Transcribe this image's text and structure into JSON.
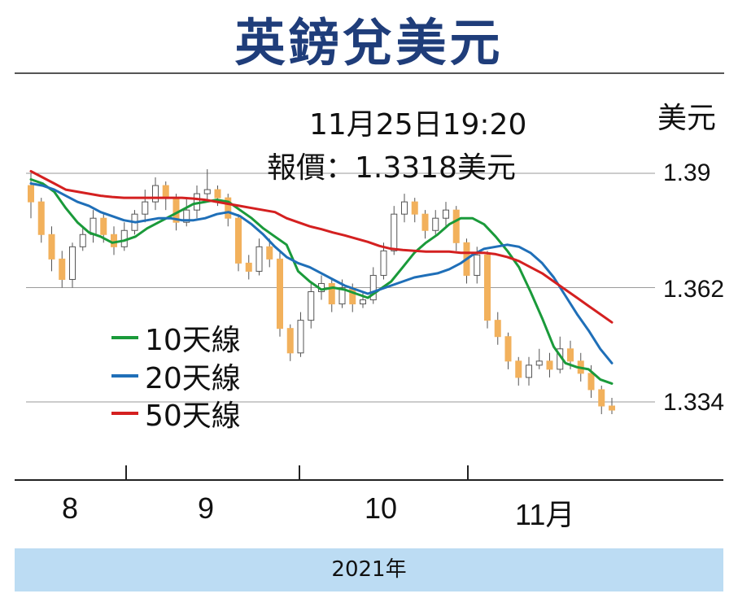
{
  "title": "英鎊兌美元",
  "unit": "美元",
  "annotation": {
    "time": "11月25日19:20",
    "price": "報價：1.3318美元"
  },
  "footer": "2021年",
  "colors": {
    "candle": "#f2b15c",
    "ma10": "#1a9a3a",
    "ma20": "#1f6fb8",
    "ma50": "#d42020",
    "title": "#1f3d7a"
  },
  "chart_data": {
    "type": "line",
    "title": "英鎊兌美元",
    "ylabel": "美元",
    "ylim": [
      1.3265,
      1.395
    ],
    "yticks": [
      "1.39",
      "1.362",
      "1.334"
    ],
    "xticks": [
      "8",
      "9",
      "10",
      "11月"
    ],
    "series": [
      {
        "name": "10天線",
        "values": [
          1.3885,
          1.3875,
          1.3855,
          1.3815,
          1.378,
          1.3755,
          1.3745,
          1.373,
          1.3735,
          1.3745,
          1.3765,
          1.378,
          1.3795,
          1.381,
          1.3825,
          1.383,
          1.3835,
          1.383,
          1.381,
          1.379,
          1.3765,
          1.3745,
          1.3725,
          1.366,
          1.3635,
          1.3615,
          1.362,
          1.3615,
          1.3605,
          1.3595,
          1.3615,
          1.3635,
          1.367,
          1.3705,
          1.373,
          1.375,
          1.3775,
          1.379,
          1.379,
          1.3775,
          1.3745,
          1.371,
          1.367,
          1.361,
          1.3545,
          1.3475,
          1.3435,
          1.3425,
          1.342,
          1.3395,
          1.3385
        ]
      },
      {
        "name": "20天線",
        "values": [
          1.3875,
          1.387,
          1.386,
          1.3845,
          1.383,
          1.382,
          1.3805,
          1.3795,
          1.3785,
          1.378,
          1.3785,
          1.379,
          1.379,
          1.3785,
          1.3785,
          1.379,
          1.38,
          1.3805,
          1.3795,
          1.3775,
          1.375,
          1.372,
          1.3695,
          1.368,
          1.367,
          1.3655,
          1.364,
          1.3625,
          1.3615,
          1.3605,
          1.3615,
          1.3625,
          1.3635,
          1.3645,
          1.365,
          1.3655,
          1.3665,
          1.368,
          1.37,
          1.3715,
          1.372,
          1.3725,
          1.372,
          1.3705,
          1.368,
          1.3645,
          1.36,
          1.3555,
          1.3515,
          1.347,
          1.3435
        ]
      },
      {
        "name": "50天線",
        "values": [
          1.3905,
          1.389,
          1.3875,
          1.386,
          1.3855,
          1.385,
          1.3845,
          1.3842,
          1.384,
          1.384,
          1.384,
          1.384,
          1.384,
          1.384,
          1.3838,
          1.3835,
          1.383,
          1.3825,
          1.382,
          1.3815,
          1.381,
          1.3805,
          1.379,
          1.378,
          1.377,
          1.3763,
          1.3755,
          1.3748,
          1.374,
          1.3732,
          1.3722,
          1.3715,
          1.3712,
          1.371,
          1.3708,
          1.3708,
          1.3708,
          1.3705,
          1.3705,
          1.3705,
          1.3702,
          1.3695,
          1.3685,
          1.367,
          1.3655,
          1.3635,
          1.3615,
          1.3595,
          1.3575,
          1.3555,
          1.3535
        ]
      }
    ],
    "candles": [
      [
        1.387,
        1.383,
        1.39,
        1.379
      ],
      [
        1.383,
        1.375,
        1.384,
        1.373
      ],
      [
        1.375,
        1.369,
        1.377,
        1.366
      ],
      [
        1.369,
        1.364,
        1.371,
        1.362
      ],
      [
        1.364,
        1.372,
        1.373,
        1.362
      ],
      [
        1.372,
        1.375,
        1.377,
        1.371
      ],
      [
        1.375,
        1.379,
        1.381,
        1.373
      ],
      [
        1.379,
        1.375,
        1.38,
        1.373
      ],
      [
        1.375,
        1.372,
        1.377,
        1.37
      ],
      [
        1.372,
        1.376,
        1.378,
        1.371
      ],
      [
        1.376,
        1.38,
        1.381,
        1.375
      ],
      [
        1.38,
        1.383,
        1.386,
        1.378
      ],
      [
        1.383,
        1.387,
        1.389,
        1.381
      ],
      [
        1.387,
        1.384,
        1.388,
        1.381
      ],
      [
        1.384,
        1.378,
        1.385,
        1.376
      ],
      [
        1.378,
        1.381,
        1.384,
        1.377
      ],
      [
        1.381,
        1.385,
        1.387,
        1.379
      ],
      [
        1.385,
        1.386,
        1.391,
        1.383
      ],
      [
        1.386,
        1.384,
        1.387,
        1.382
      ],
      [
        1.384,
        1.379,
        1.385,
        1.377
      ],
      [
        1.379,
        1.368,
        1.38,
        1.366
      ],
      [
        1.368,
        1.366,
        1.37,
        1.364
      ],
      [
        1.366,
        1.372,
        1.374,
        1.365
      ],
      [
        1.372,
        1.369,
        1.374,
        1.367
      ],
      [
        1.369,
        1.352,
        1.371,
        1.35
      ],
      [
        1.352,
        1.346,
        1.353,
        1.344
      ],
      [
        1.346,
        1.354,
        1.356,
        1.345
      ],
      [
        1.354,
        1.361,
        1.363,
        1.352
      ],
      [
        1.361,
        1.363,
        1.365,
        1.359
      ],
      [
        1.363,
        1.358,
        1.364,
        1.356
      ],
      [
        1.358,
        1.362,
        1.364,
        1.357
      ],
      [
        1.362,
        1.358,
        1.363,
        1.356
      ],
      [
        1.358,
        1.359,
        1.361,
        1.357
      ],
      [
        1.359,
        1.365,
        1.367,
        1.358
      ],
      [
        1.365,
        1.371,
        1.373,
        1.364
      ],
      [
        1.371,
        1.38,
        1.382,
        1.37
      ],
      [
        1.38,
        1.383,
        1.385,
        1.378
      ],
      [
        1.383,
        1.38,
        1.384,
        1.378
      ],
      [
        1.38,
        1.376,
        1.381,
        1.374
      ],
      [
        1.376,
        1.379,
        1.381,
        1.375
      ],
      [
        1.379,
        1.381,
        1.383,
        1.377
      ],
      [
        1.381,
        1.373,
        1.382,
        1.371
      ],
      [
        1.373,
        1.365,
        1.374,
        1.363
      ],
      [
        1.365,
        1.37,
        1.372,
        1.363
      ],
      [
        1.37,
        1.354,
        1.371,
        1.352
      ],
      [
        1.354,
        1.35,
        1.356,
        1.348
      ],
      [
        1.35,
        1.344,
        1.351,
        1.342
      ],
      [
        1.344,
        1.34,
        1.345,
        1.338
      ],
      [
        1.34,
        1.343,
        1.345,
        1.338
      ],
      [
        1.343,
        1.344,
        1.347,
        1.342
      ],
      [
        1.344,
        1.342,
        1.346,
        1.34
      ],
      [
        1.342,
        1.347,
        1.35,
        1.341
      ],
      [
        1.347,
        1.344,
        1.349,
        1.342
      ],
      [
        1.344,
        1.341,
        1.346,
        1.339
      ],
      [
        1.341,
        1.337,
        1.343,
        1.335
      ],
      [
        1.337,
        1.333,
        1.338,
        1.331
      ],
      [
        1.333,
        1.332,
        1.335,
        1.331
      ]
    ]
  }
}
